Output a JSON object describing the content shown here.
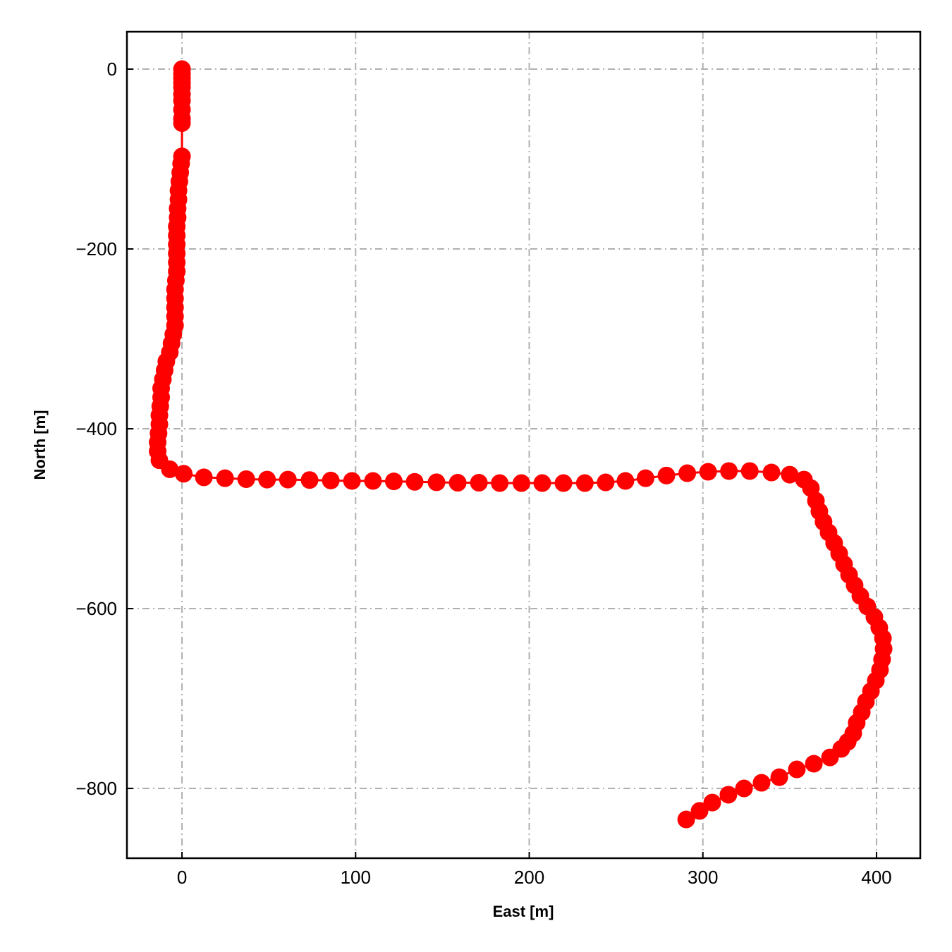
{
  "chart_data": {
    "type": "line",
    "title": "",
    "xlabel": "East [m]",
    "ylabel": "North [m]",
    "xlim": [
      -31.7,
      425.2
    ],
    "ylim": [
      -877.6,
      41.6
    ],
    "xticks": [
      0,
      100,
      200,
      300,
      400
    ],
    "yticks": [
      0,
      -200,
      -400,
      -600,
      -800
    ],
    "xtick_labels": [
      "0",
      "100",
      "200",
      "300",
      "400"
    ],
    "ytick_labels": [
      "0",
      "−200",
      "−400",
      "−600",
      "−800"
    ],
    "grid": true,
    "grid_style": "dash-dot",
    "color": "#ff0000",
    "marker": "circle",
    "series": [
      {
        "x": [
          0,
          0,
          0,
          0,
          0,
          0,
          0,
          0,
          0,
          0,
          0,
          -0.5,
          -1,
          -1.5,
          -2,
          -2,
          -2.5,
          -2.5,
          -3,
          -3,
          -3,
          -3,
          -3,
          -3,
          -3.5,
          -4,
          -4,
          -4,
          -4,
          -4,
          -5,
          -6,
          -7,
          -9,
          -10,
          -11,
          -12,
          -12,
          -12.5,
          -13,
          -13,
          -13.5,
          -14,
          -14,
          -13,
          -7,
          1,
          12.6,
          24.8,
          37,
          49,
          61,
          73.5,
          85.7,
          97.9,
          110,
          122,
          134,
          146.6,
          158.8,
          171,
          183,
          195.5,
          207.5,
          219.7,
          232,
          244,
          255.4,
          267,
          279,
          291,
          303,
          315,
          327,
          339.5,
          350,
          358.2,
          362.2,
          365.1,
          367.1,
          369.5,
          372.4,
          375.6,
          378.5,
          381.3,
          384.2,
          387.4,
          390.7,
          394.7,
          398.8,
          401.6,
          403.7,
          404.1,
          403.2,
          402,
          399.6,
          396.8,
          393.9,
          391.5,
          388.6,
          386.6,
          383.4,
          379.7,
          373.2,
          363.9,
          354.1,
          344,
          333.8,
          323.7,
          314.7,
          305.4,
          298.1,
          290.4
        ],
        "y": [
          0,
          -5,
          -10,
          -15,
          -20,
          -28,
          -35,
          -45,
          -55,
          -60,
          -97,
          -105,
          -115,
          -125,
          -135,
          -145,
          -155,
          -165,
          -175,
          -185,
          -195,
          -205,
          -215,
          -225,
          -235,
          -245,
          -255,
          -265,
          -275,
          -285,
          -295,
          -305,
          -315,
          -325,
          -335,
          -345,
          -355,
          -365,
          -375,
          -385,
          -395,
          -405,
          -415,
          -425,
          -435,
          -445,
          -450,
          -454,
          -455,
          -456,
          -456.5,
          -456.5,
          -457,
          -457.5,
          -458,
          -458,
          -458.5,
          -459,
          -459.5,
          -460,
          -460,
          -460.4,
          -460.4,
          -460.4,
          -460.4,
          -460.4,
          -459.6,
          -458,
          -455,
          -452,
          -449.4,
          -447.8,
          -447,
          -447,
          -448.6,
          -451,
          -456.5,
          -466,
          -480,
          -491.8,
          -503.5,
          -515.3,
          -527,
          -538.8,
          -550.6,
          -562.4,
          -574,
          -585.9,
          -597.6,
          -609.4,
          -621.2,
          -633,
          -644.7,
          -656.5,
          -668.2,
          -680,
          -691.8,
          -703.5,
          -715.3,
          -727,
          -738.8,
          -748.2,
          -756,
          -765.5,
          -772.5,
          -778.8,
          -787.5,
          -793.7,
          -800,
          -807,
          -815.7,
          -825,
          -834.5
        ]
      }
    ]
  }
}
